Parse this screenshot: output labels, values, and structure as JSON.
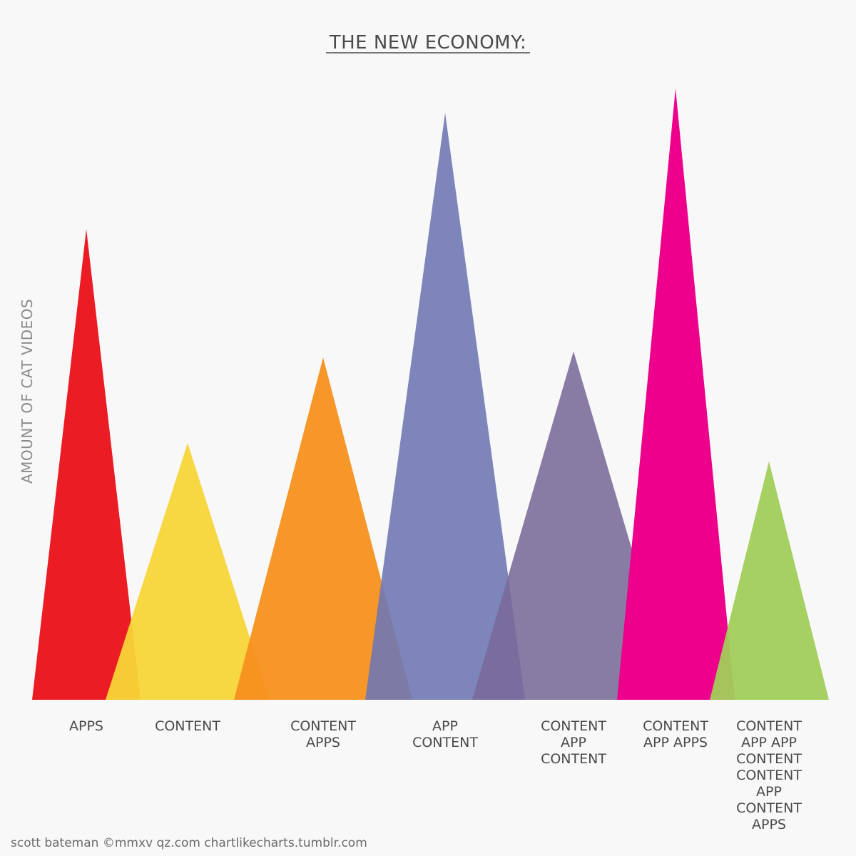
{
  "chart_data": {
    "type": "area",
    "title": "THE NEW ECONOMY:",
    "xlabel": "",
    "ylabel": "AMOUNT OF CAT VIDEOS",
    "ylim": [
      0,
      100
    ],
    "grid": false,
    "legend": "none",
    "series": [
      {
        "name": "APPS",
        "label_lines": [
          "APPS"
        ],
        "value": 77,
        "color": "#ec1c24",
        "opacity": 1.0
      },
      {
        "name": "CONTENT",
        "label_lines": [
          "CONTENT"
        ],
        "value": 42,
        "color": "#f7d538",
        "opacity": 0.95
      },
      {
        "name": "CONTENT APPS",
        "label_lines": [
          "CONTENT",
          "APPS"
        ],
        "value": 56,
        "color": "#f7901e",
        "opacity": 0.95
      },
      {
        "name": "APP CONTENT",
        "label_lines": [
          "APP",
          "CONTENT"
        ],
        "value": 96,
        "color": "#6f78b4",
        "opacity": 0.9
      },
      {
        "name": "CONTENT APP CONTENT",
        "label_lines": [
          "CONTENT",
          "APP",
          "CONTENT"
        ],
        "value": 57,
        "color": "#786a98",
        "opacity": 0.88
      },
      {
        "name": "CONTENT APP APPS",
        "label_lines": [
          "CONTENT",
          "APP APPS"
        ],
        "value": 100,
        "color": "#ec008c",
        "opacity": 1.0
      },
      {
        "name": "CONTENT APP APP CONTENT CONTENT APP CONTENT APPS",
        "label_lines": [
          "CONTENT",
          "APP APP",
          "CONTENT",
          "CONTENT",
          "APP",
          "CONTENT",
          "APPS"
        ],
        "value": 39,
        "color": "#a2cd5a",
        "opacity": 0.95
      }
    ]
  },
  "credit": "scott bateman ©mmxv qz.com chartlikecharts.tumblr.com"
}
